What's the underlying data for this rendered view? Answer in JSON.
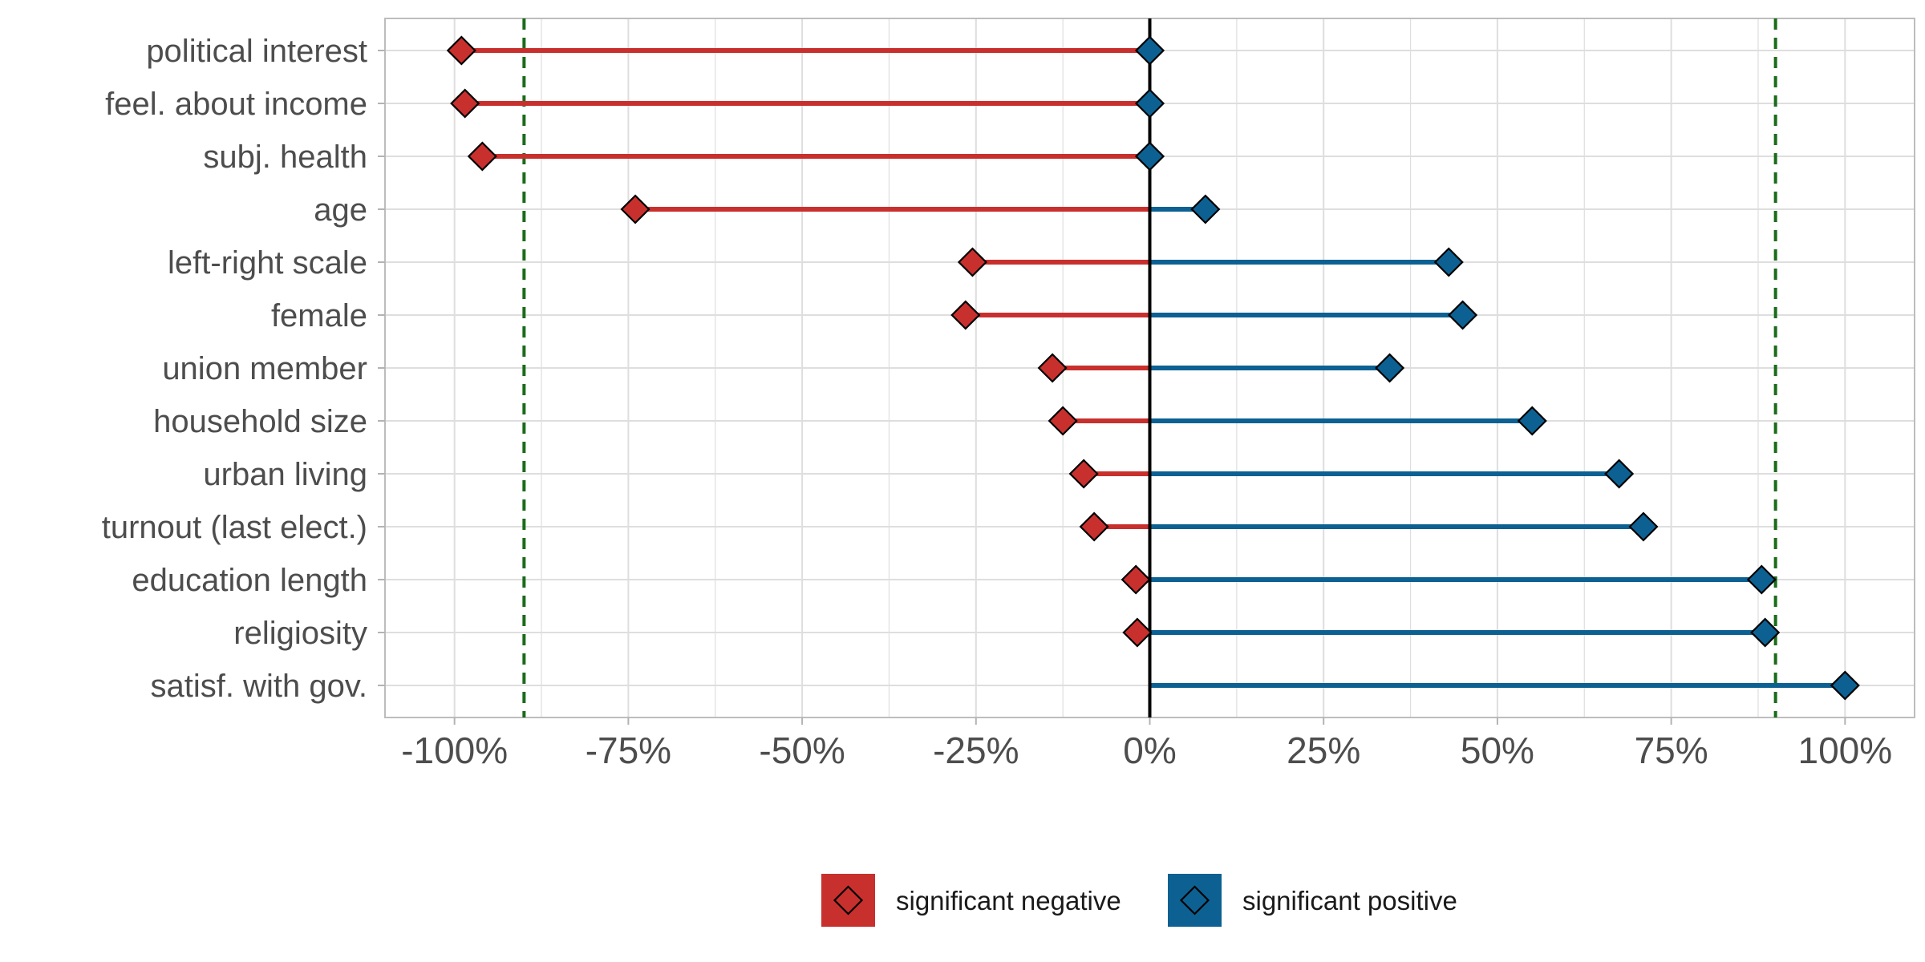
{
  "chart_data": {
    "type": "range-dot",
    "title": "",
    "xlabel": "",
    "ylabel": "",
    "xlim": [
      -1.1,
      1.1
    ],
    "x_ticks": [
      -1.0,
      -0.75,
      -0.5,
      -0.25,
      0.0,
      0.25,
      0.5,
      0.75,
      1.0
    ],
    "x_tick_labels": [
      "-100%",
      "-75%",
      "-50%",
      "-25%",
      "0%",
      "25%",
      "50%",
      "75%",
      "100%"
    ],
    "grid": true,
    "reference_lines": {
      "zero": 0.0,
      "threshold_dashed": [
        -0.9,
        0.9
      ]
    },
    "categories": [
      "political interest",
      "feel. about income",
      "subj. health",
      "age",
      "left-right scale",
      "female",
      "union member",
      "household size",
      "urban living",
      "turnout (last elect.)",
      "education length",
      "religiosity",
      "satisf. with gov."
    ],
    "series": [
      {
        "name": "significant negative",
        "color": "#C8302E",
        "values": [
          -0.99,
          -0.985,
          -0.96,
          -0.74,
          -0.255,
          -0.265,
          -0.14,
          -0.125,
          -0.095,
          -0.08,
          -0.02,
          -0.018,
          0.0
        ]
      },
      {
        "name": "significant positive",
        "color": "#0D6192",
        "values": [
          0.0,
          0.0,
          0.0,
          0.08,
          0.43,
          0.45,
          0.345,
          0.55,
          0.675,
          0.71,
          0.88,
          0.885,
          1.0
        ]
      }
    ],
    "legend_position": "bottom",
    "legend_title": "",
    "colors": {
      "zero_line": "#000000",
      "threshold_line": "#1a6b1a",
      "grid": "#dedede",
      "panel_border": "#bdbdbd"
    }
  }
}
